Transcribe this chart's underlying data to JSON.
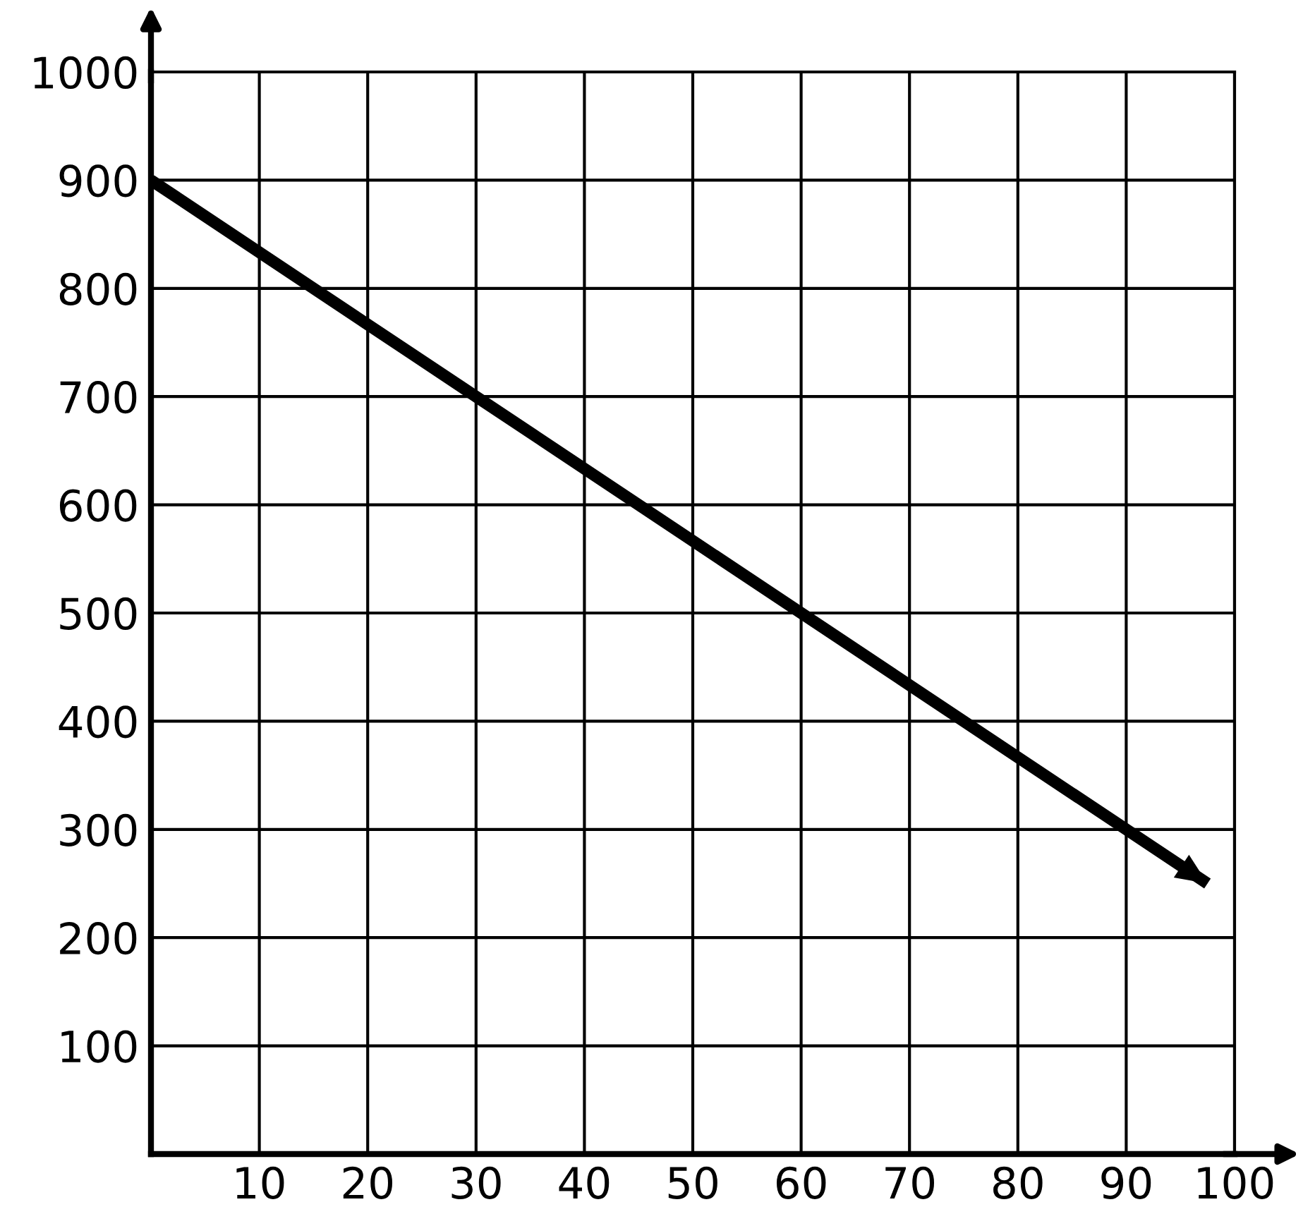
{
  "chart_data": {
    "type": "line",
    "x": [
      0,
      30,
      60,
      97.5
    ],
    "values": [
      900,
      700,
      500,
      250
    ],
    "color": "#000000",
    "xlim": [
      0,
      100
    ],
    "ylim": [
      0,
      1000
    ],
    "xticks": [
      10,
      20,
      30,
      40,
      50,
      60,
      70,
      80,
      90,
      100
    ],
    "yticks": [
      100,
      200,
      300,
      400,
      500,
      600,
      700,
      800,
      900,
      1000
    ],
    "grid": true,
    "marker": "none",
    "line_style": "solid"
  }
}
